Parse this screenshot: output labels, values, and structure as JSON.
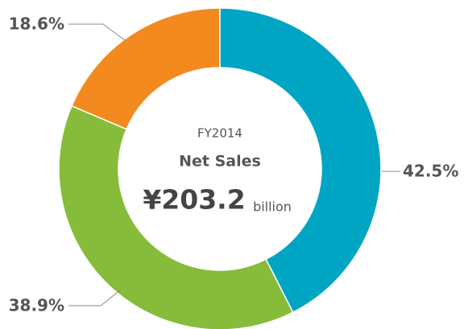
{
  "chart_data": {
    "type": "donut",
    "values": [
      42.5,
      38.9,
      18.6
    ],
    "value_labels": [
      "42.5%",
      "38.9%",
      "18.6%"
    ],
    "colors": [
      "#00a5c4",
      "#86bc3a",
      "#f28a1f"
    ],
    "annotations": [
      "FY2014",
      "Net Sales",
      "¥203.2",
      "billion"
    ]
  }
}
